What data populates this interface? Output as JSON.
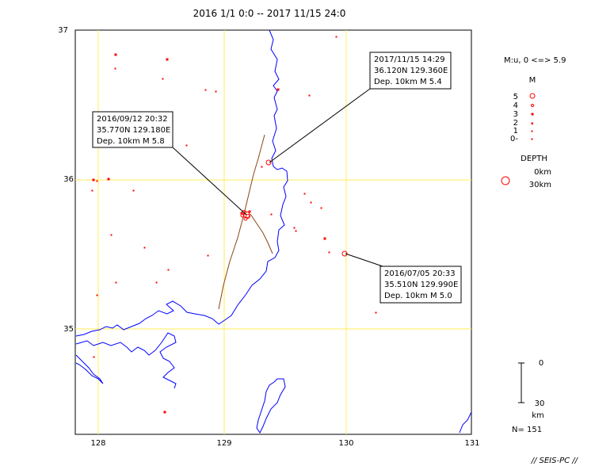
{
  "title": "2016 1/1 0:0 -- 2017 11/15 24:0",
  "lat_labels": [
    "37",
    "36",
    "35"
  ],
  "lon_labels": [
    "128",
    "129",
    "130",
    "131"
  ],
  "callouts": [
    {
      "line1": "2017/11/15 14:29",
      "line2": "36.120N  129.360E",
      "line3": "Dep. 10km   M 5.4"
    },
    {
      "line1": "2016/09/12 20:32",
      "line2": "35.770N  129.180E",
      "line3": "Dep. 10km   M 5.8"
    },
    {
      "line1": "2016/07/05 20:33",
      "line2": "35.510N  129.990E",
      "line3": "Dep. 10km   M 5.0"
    }
  ],
  "legend": {
    "mag_range": "M:u, 0 <=> 5.9",
    "mag_header": "M",
    "mag_levels": [
      "5",
      "4",
      "3",
      "2",
      "1",
      "0-"
    ],
    "depth_header": "DEPTH",
    "depth_levels": [
      "0km",
      "30km"
    ],
    "scale_top": "0",
    "scale_bottom": "30",
    "scale_unit": "km",
    "count": "N= 151"
  },
  "footer": "// SEIS-PC //",
  "colors": {
    "grid": "#ffee55",
    "coast": "#0000ff",
    "fault": "#8b4513",
    "quake": "#ff0000",
    "frame": "#000000"
  }
}
